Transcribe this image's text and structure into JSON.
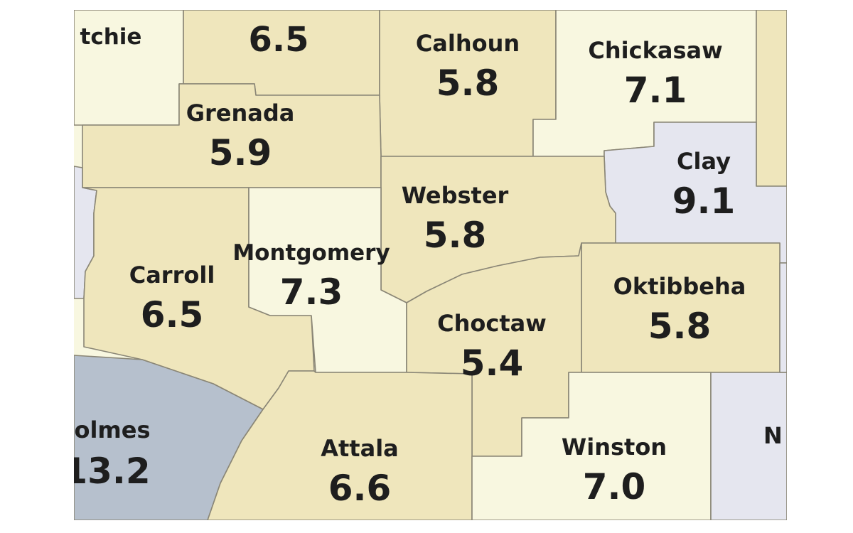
{
  "map": {
    "colors": {
      "tan": "#efe6bc",
      "pale": "#f8f7e0",
      "lavender": "#e5e6ef",
      "slate": "#b6c0cd",
      "border": "#8a8676",
      "label": "#1e1e1e"
    },
    "counties": [
      {
        "id": "yalobusha",
        "name": "",
        "value": "6.5",
        "fill": "tan"
      },
      {
        "id": "calhoun",
        "name": "Calhoun",
        "value": "5.8",
        "fill": "tan"
      },
      {
        "id": "chickasaw",
        "name": "Chickasaw",
        "value": "7.1",
        "fill": "pale"
      },
      {
        "id": "grenada",
        "name": "Grenada",
        "value": "5.9",
        "fill": "tan"
      },
      {
        "id": "clay",
        "name": "Clay",
        "value": "9.1",
        "fill": "lavender"
      },
      {
        "id": "webster",
        "name": "Webster",
        "value": "5.8",
        "fill": "tan"
      },
      {
        "id": "carroll",
        "name": "Carroll",
        "value": "6.5",
        "fill": "tan"
      },
      {
        "id": "montgomery",
        "name": "Montgomery",
        "value": "7.3",
        "fill": "pale"
      },
      {
        "id": "oktibbeha",
        "name": "Oktibbeha",
        "value": "5.8",
        "fill": "tan"
      },
      {
        "id": "choctaw",
        "name": "Choctaw",
        "value": "5.4",
        "fill": "tan"
      },
      {
        "id": "holmes",
        "name": "olmes",
        "value": "13.2",
        "fill": "slate"
      },
      {
        "id": "attala",
        "name": "Attala",
        "value": "6.6",
        "fill": "tan"
      },
      {
        "id": "winston",
        "name": "Winston",
        "value": "7.0",
        "fill": "pale"
      },
      {
        "id": "tallahatchie",
        "name": "tchie",
        "value": "",
        "fill": "pale"
      },
      {
        "id": "noxubee",
        "name": "N",
        "value": "",
        "fill": "lavender"
      },
      {
        "id": "leflore",
        "name": "",
        "value": "",
        "fill": "lavender"
      },
      {
        "id": "monroe",
        "name": "",
        "value": "",
        "fill": "tan"
      },
      {
        "id": "lowndes",
        "name": "",
        "value": "",
        "fill": "lavender"
      }
    ]
  }
}
